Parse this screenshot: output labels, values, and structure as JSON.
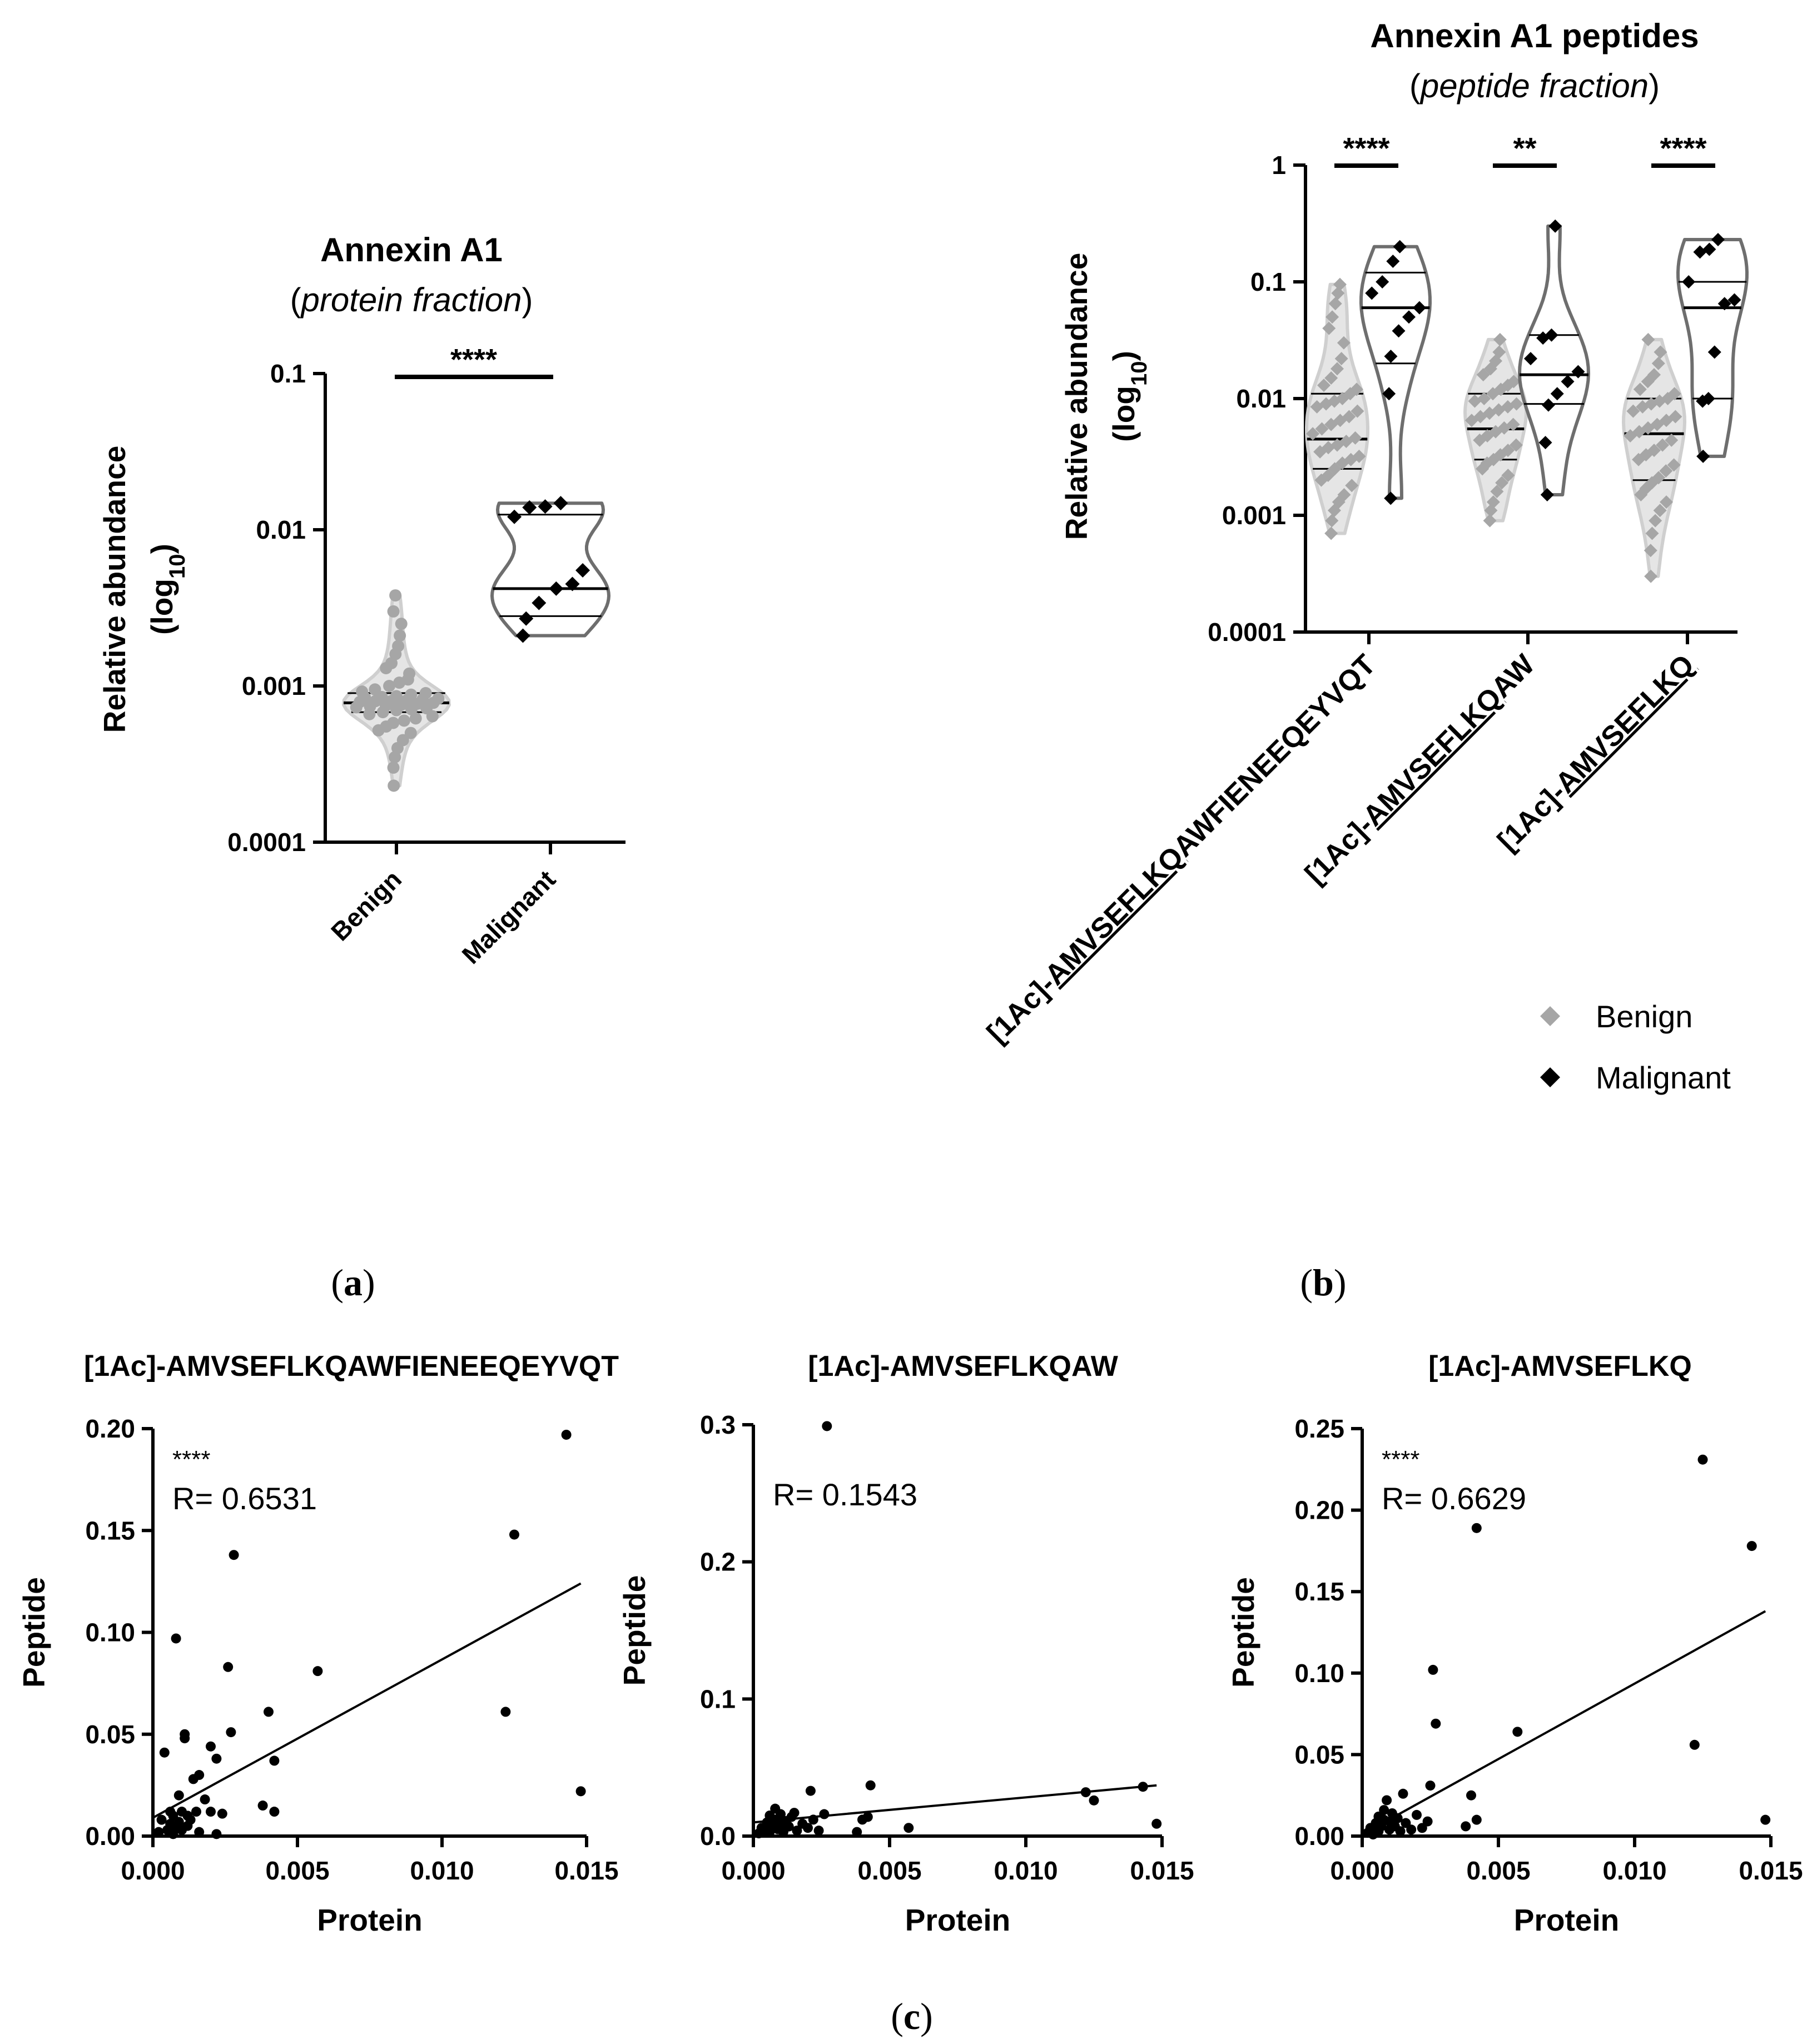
{
  "panels": {
    "a": "(a)",
    "b": "(b)",
    "c": "(c)"
  },
  "colors": {
    "benign": "#a6a6a6",
    "benign_violin": "#cfcfcf",
    "malignant": "#000000",
    "malignant_violin": "#6e6e6e"
  },
  "chart_data": [
    {
      "id": "a",
      "type": "violin",
      "title": "Annexin A1",
      "subtitle": "(protein fraction)",
      "ylabel": "Relative abundance",
      "ylabel_unit": "(log10)",
      "yscale": "log",
      "ylim": [
        0.0001,
        0.1
      ],
      "yticks": [
        "0.1",
        "0.01",
        "0.001",
        "0.0001"
      ],
      "categories": [
        "Benign",
        "Malignant"
      ],
      "significance": "****",
      "groups": [
        {
          "name": "Benign",
          "median": 0.00078,
          "quartiles": [
            0.00068,
            0.0009
          ],
          "range": [
            0.00023,
            0.0038
          ],
          "points": [
            0.00023,
            0.0003,
            0.00035,
            0.0004,
            0.00045,
            0.0005,
            0.00052,
            0.00055,
            0.00058,
            0.0006,
            0.00062,
            0.00064,
            0.00066,
            0.00068,
            0.0007,
            0.00071,
            0.00072,
            0.00073,
            0.00074,
            0.00075,
            0.00076,
            0.00077,
            0.00078,
            0.00079,
            0.0008,
            0.0008,
            0.00081,
            0.00082,
            0.00083,
            0.00084,
            0.00085,
            0.00086,
            0.00088,
            0.0009,
            0.00092,
            0.00095,
            0.001,
            0.00105,
            0.0011,
            0.0012,
            0.0013,
            0.0014,
            0.0016,
            0.0018,
            0.0021,
            0.0025,
            0.003,
            0.0038
          ]
        },
        {
          "name": "Malignant",
          "median": 0.0042,
          "quartiles": [
            0.0028,
            0.0125
          ],
          "range": [
            0.0021,
            0.0148
          ],
          "points": [
            0.0021,
            0.0027,
            0.0034,
            0.0042,
            0.0045,
            0.0055,
            0.0121,
            0.0139,
            0.0141,
            0.0148
          ]
        }
      ]
    },
    {
      "id": "b",
      "type": "violin",
      "title": "Annexin A1 peptides",
      "subtitle": "(peptide fraction)",
      "ylabel": "Relative abundance",
      "ylabel_unit": "(log10)",
      "yscale": "log",
      "ylim": [
        0.0001,
        1
      ],
      "yticks": [
        "1",
        "0.1",
        "0.01",
        "0.001",
        "0.0001"
      ],
      "categories": [
        "[1Ac]-AMVSEFLKQAWFIENEEQEYVQT",
        "[1Ac]-AMVSEFLKQAW",
        "[1Ac]-AMVSEFLKQ"
      ],
      "category_parts": [
        {
          "prefix": "[1Ac]-",
          "underlined": "AMVSEFLKQ",
          "rest": "AWFIENEEQEYVQT"
        },
        {
          "prefix": "[1Ac]-",
          "underlined": "AMVSEFLKQ",
          "rest": "AW"
        },
        {
          "prefix": "[1Ac]-",
          "underlined": "AMVSEFLKQ",
          "rest": ""
        }
      ],
      "significance": [
        "****",
        "**",
        "****"
      ],
      "legend": [
        "Benign",
        "Malignant"
      ],
      "groups": [
        {
          "category": "[1Ac]-AMVSEFLKQAWFIENEEQEYVQT",
          "benign": {
            "median": 0.0045,
            "quartiles": [
              0.0025,
              0.011
            ],
            "range": [
              0.0007,
              0.095
            ],
            "points": [
              0.0007,
              0.0009,
              0.0011,
              0.0013,
              0.0015,
              0.0018,
              0.002,
              0.0022,
              0.0025,
              0.0028,
              0.003,
              0.0032,
              0.0035,
              0.0038,
              0.004,
              0.0043,
              0.0046,
              0.005,
              0.0055,
              0.006,
              0.0065,
              0.007,
              0.0078,
              0.0085,
              0.009,
              0.0095,
              0.01,
              0.011,
              0.012,
              0.013,
              0.015,
              0.018,
              0.022,
              0.03,
              0.04,
              0.05,
              0.065,
              0.08,
              0.095
            ]
          },
          "malignant": {
            "median": 0.06,
            "quartiles": [
              0.02,
              0.12
            ],
            "range": [
              0.0014,
              0.2
            ],
            "points": [
              0.0014,
              0.011,
              0.023,
              0.038,
              0.05,
              0.06,
              0.08,
              0.1,
              0.15,
              0.2
            ]
          }
        },
        {
          "category": "[1Ac]-AMVSEFLKQAW",
          "benign": {
            "median": 0.0055,
            "quartiles": [
              0.003,
              0.011
            ],
            "range": [
              0.0009,
              0.032
            ],
            "points": [
              0.0009,
              0.0011,
              0.0013,
              0.0016,
              0.0019,
              0.0022,
              0.0025,
              0.0028,
              0.003,
              0.0033,
              0.0036,
              0.004,
              0.0044,
              0.0048,
              0.0052,
              0.0056,
              0.006,
              0.0065,
              0.007,
              0.0075,
              0.008,
              0.0085,
              0.009,
              0.0095,
              0.01,
              0.011,
              0.012,
              0.013,
              0.014,
              0.016,
              0.018,
              0.021,
              0.025,
              0.032
            ]
          },
          "malignant": {
            "median": 0.016,
            "quartiles": [
              0.009,
              0.035
            ],
            "range": [
              0.0015,
              0.3
            ],
            "points": [
              0.0015,
              0.0042,
              0.0088,
              0.011,
              0.014,
              0.017,
              0.022,
              0.033,
              0.035,
              0.3
            ]
          }
        },
        {
          "category": "[1Ac]-AMVSEFLKQ",
          "benign": {
            "median": 0.005,
            "quartiles": [
              0.002,
              0.01
            ],
            "range": [
              0.0003,
              0.032
            ],
            "points": [
              0.0003,
              0.0005,
              0.0007,
              0.0009,
              0.0011,
              0.0013,
              0.0015,
              0.0017,
              0.0019,
              0.0021,
              0.0024,
              0.0027,
              0.003,
              0.0033,
              0.0036,
              0.004,
              0.0044,
              0.0048,
              0.0052,
              0.0056,
              0.006,
              0.0065,
              0.007,
              0.0078,
              0.0085,
              0.009,
              0.0095,
              0.01,
              0.011,
              0.012,
              0.014,
              0.016,
              0.02,
              0.025,
              0.032
            ]
          },
          "malignant": {
            "median": 0.06,
            "quartiles": [
              0.01,
              0.1
            ],
            "range": [
              0.0032,
              0.23
            ],
            "points": [
              0.0032,
              0.0095,
              0.01,
              0.025,
              0.065,
              0.07,
              0.1,
              0.18,
              0.19,
              0.23
            ]
          }
        }
      ]
    },
    {
      "id": "c1",
      "type": "scatter",
      "title": "[1Ac]-AMVSEFLKQAWFIENEEQEYVQT",
      "xlabel": "Protein",
      "ylabel": "Peptide",
      "xlim": [
        0,
        0.015
      ],
      "ylim": [
        0,
        0.2
      ],
      "xticks": [
        "0.000",
        "0.005",
        "0.010",
        "0.015"
      ],
      "yticks": [
        "0.00",
        "0.05",
        "0.10",
        "0.15",
        "0.20"
      ],
      "significance": "****",
      "r_text": "R= 0.6531",
      "fit": {
        "x": [
          0,
          0.0148
        ],
        "y": [
          0.009,
          0.124
        ]
      },
      "points": [
        [
          0.0002,
          0.002
        ],
        [
          0.0003,
          0.008
        ],
        [
          0.0004,
          0.041
        ],
        [
          0.0005,
          0.003
        ],
        [
          0.0006,
          0.012
        ],
        [
          0.0006,
          0.006
        ],
        [
          0.0007,
          0.001
        ],
        [
          0.0007,
          0.01
        ],
        [
          0.0008,
          0.004
        ],
        [
          0.0008,
          0.097
        ],
        [
          0.0009,
          0.007
        ],
        [
          0.0009,
          0.02
        ],
        [
          0.001,
          0.003
        ],
        [
          0.001,
          0.012
        ],
        [
          0.0011,
          0.048
        ],
        [
          0.0011,
          0.05
        ],
        [
          0.0012,
          0.005
        ],
        [
          0.0012,
          0.01
        ],
        [
          0.0013,
          0.008
        ],
        [
          0.0014,
          0.028
        ],
        [
          0.0015,
          0.012
        ],
        [
          0.0016,
          0.03
        ],
        [
          0.0016,
          0.002
        ],
        [
          0.0018,
          0.018
        ],
        [
          0.002,
          0.044
        ],
        [
          0.002,
          0.012
        ],
        [
          0.0022,
          0.038
        ],
        [
          0.0022,
          0.001
        ],
        [
          0.0024,
          0.011
        ],
        [
          0.0026,
          0.083
        ],
        [
          0.0027,
          0.051
        ],
        [
          0.0028,
          0.138
        ],
        [
          0.0038,
          0.015
        ],
        [
          0.004,
          0.061
        ],
        [
          0.0042,
          0.037
        ],
        [
          0.0042,
          0.012
        ],
        [
          0.0057,
          0.081
        ],
        [
          0.0122,
          0.061
        ],
        [
          0.0125,
          0.148
        ],
        [
          0.0143,
          0.197
        ],
        [
          0.0148,
          0.022
        ]
      ]
    },
    {
      "id": "c2",
      "type": "scatter",
      "title": "[1Ac]-AMVSEFLKQAW",
      "xlabel": "Protein",
      "ylabel": "Peptide",
      "xlim": [
        0,
        0.015
      ],
      "ylim": [
        0,
        0.3
      ],
      "xticks": [
        "0.000",
        "0.005",
        "0.010",
        "0.015"
      ],
      "yticks": [
        "0.0",
        "0.1",
        "0.2",
        "0.3"
      ],
      "significance": "",
      "r_text": "R= 0.1543",
      "fit": {
        "x": [
          0,
          0.0148
        ],
        "y": [
          0.01,
          0.037
        ]
      },
      "points": [
        [
          0.0002,
          0.002
        ],
        [
          0.0003,
          0.006
        ],
        [
          0.0004,
          0.004
        ],
        [
          0.0005,
          0.01
        ],
        [
          0.0006,
          0.003
        ],
        [
          0.0006,
          0.015
        ],
        [
          0.0007,
          0.007
        ],
        [
          0.0008,
          0.012
        ],
        [
          0.0008,
          0.02
        ],
        [
          0.0009,
          0.005
        ],
        [
          0.001,
          0.009
        ],
        [
          0.001,
          0.016
        ],
        [
          0.0011,
          0.003
        ],
        [
          0.0012,
          0.011
        ],
        [
          0.0013,
          0.007
        ],
        [
          0.0014,
          0.014
        ],
        [
          0.0015,
          0.017
        ],
        [
          0.0016,
          0.004
        ],
        [
          0.0018,
          0.009
        ],
        [
          0.002,
          0.006
        ],
        [
          0.0021,
          0.033
        ],
        [
          0.0022,
          0.012
        ],
        [
          0.0024,
          0.004
        ],
        [
          0.0026,
          0.016
        ],
        [
          0.0027,
          0.299
        ],
        [
          0.0038,
          0.003
        ],
        [
          0.004,
          0.012
        ],
        [
          0.0042,
          0.014
        ],
        [
          0.0043,
          0.037
        ],
        [
          0.0057,
          0.006
        ],
        [
          0.0122,
          0.032
        ],
        [
          0.0125,
          0.026
        ],
        [
          0.0143,
          0.036
        ],
        [
          0.0148,
          0.009
        ]
      ]
    },
    {
      "id": "c3",
      "type": "scatter",
      "title": "[1Ac]-AMVSEFLKQ",
      "xlabel": "Protein",
      "ylabel": "Peptide",
      "xlim": [
        0,
        0.015
      ],
      "ylim": [
        0,
        0.25
      ],
      "xticks": [
        "0.000",
        "0.005",
        "0.010",
        "0.015"
      ],
      "yticks": [
        "0.00",
        "0.05",
        "0.10",
        "0.15",
        "0.20",
        "0.25"
      ],
      "significance": "****",
      "r_text": "R= 0.6629",
      "fit": {
        "x": [
          0,
          0.0148
        ],
        "y": [
          0.001,
          0.138
        ]
      },
      "points": [
        [
          0.0002,
          0.002
        ],
        [
          0.0003,
          0.005
        ],
        [
          0.0004,
          0.001
        ],
        [
          0.0005,
          0.008
        ],
        [
          0.0006,
          0.012
        ],
        [
          0.0006,
          0.003
        ],
        [
          0.0007,
          0.006
        ],
        [
          0.0008,
          0.016
        ],
        [
          0.0008,
          0.01
        ],
        [
          0.0009,
          0.022
        ],
        [
          0.001,
          0.004
        ],
        [
          0.001,
          0.009
        ],
        [
          0.0011,
          0.014
        ],
        [
          0.0012,
          0.006
        ],
        [
          0.0013,
          0.011
        ],
        [
          0.0014,
          0.003
        ],
        [
          0.0015,
          0.026
        ],
        [
          0.0016,
          0.008
        ],
        [
          0.0018,
          0.004
        ],
        [
          0.002,
          0.013
        ],
        [
          0.0022,
          0.005
        ],
        [
          0.0024,
          0.009
        ],
        [
          0.0025,
          0.031
        ],
        [
          0.0026,
          0.102
        ],
        [
          0.0027,
          0.069
        ],
        [
          0.0038,
          0.006
        ],
        [
          0.004,
          0.025
        ],
        [
          0.0042,
          0.189
        ],
        [
          0.0042,
          0.01
        ],
        [
          0.0057,
          0.064
        ],
        [
          0.0122,
          0.056
        ],
        [
          0.0125,
          0.231
        ],
        [
          0.0143,
          0.178
        ],
        [
          0.0148,
          0.01
        ]
      ]
    }
  ]
}
